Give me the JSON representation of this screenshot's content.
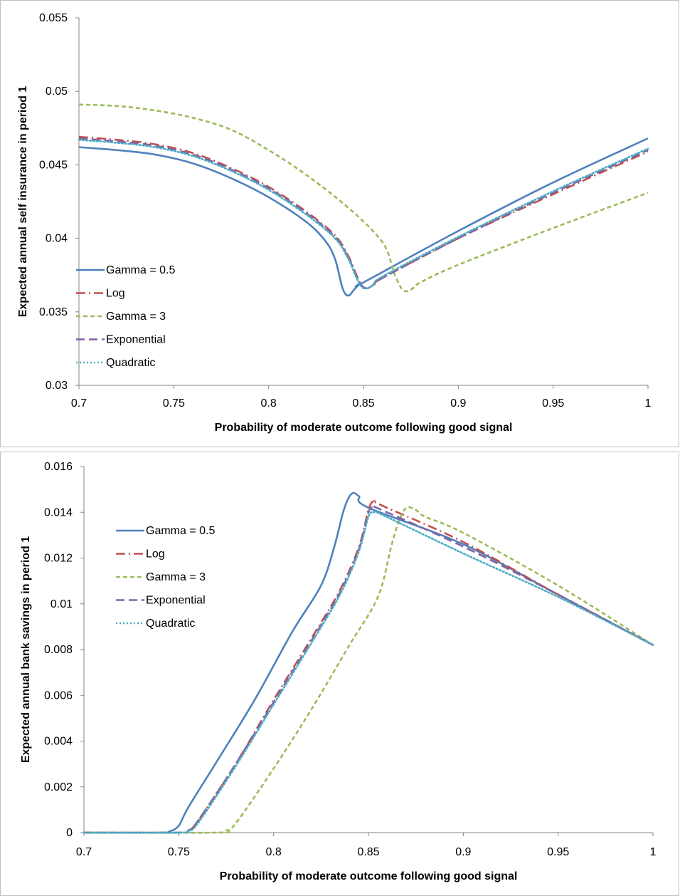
{
  "chart_data": [
    {
      "type": "line",
      "title": "",
      "xlabel": "Probability of moderate outcome following good signal",
      "ylabel": "Expected annual self insurance in period 1",
      "xlim": [
        0.7,
        1
      ],
      "ylim": [
        0.03,
        0.055
      ],
      "x_ticks": [
        "0.7",
        "0.75",
        "0.8",
        "0.85",
        "0.9",
        "0.95",
        "1"
      ],
      "y_ticks": [
        "0.03",
        "0.035",
        "0.04",
        "0.045",
        "0.05",
        "0.055"
      ],
      "grid": false,
      "legend_position": "left",
      "series": [
        {
          "name": "Gamma = 0.5",
          "color": "#4f81bd",
          "dash": "solid",
          "points": [
            [
              0.7,
              0.0462
            ],
            [
              0.72,
              0.046
            ],
            [
              0.74,
              0.0457
            ],
            [
              0.76,
              0.0451
            ],
            [
              0.78,
              0.0441
            ],
            [
              0.8,
              0.0428
            ],
            [
              0.82,
              0.0411
            ],
            [
              0.83,
              0.0398
            ],
            [
              0.835,
              0.0386
            ],
            [
              0.839,
              0.0366
            ],
            [
              0.842,
              0.0361
            ],
            [
              0.845,
              0.0365
            ],
            [
              0.848,
              0.0369
            ],
            [
              0.85,
              0.037
            ],
            [
              0.9,
              0.0405
            ],
            [
              0.95,
              0.0438
            ],
            [
              1.0,
              0.0468
            ]
          ]
        },
        {
          "name": "Log",
          "color": "#c0504d",
          "dash": "longdash",
          "points": [
            [
              0.7,
              0.0469
            ],
            [
              0.72,
              0.0467
            ],
            [
              0.74,
              0.0464
            ],
            [
              0.76,
              0.0458
            ],
            [
              0.78,
              0.0448
            ],
            [
              0.8,
              0.0435
            ],
            [
              0.82,
              0.0418
            ],
            [
              0.835,
              0.0402
            ],
            [
              0.842,
              0.0388
            ],
            [
              0.846,
              0.0376
            ],
            [
              0.849,
              0.0368
            ],
            [
              0.852,
              0.0366
            ],
            [
              0.856,
              0.0369
            ],
            [
              0.86,
              0.0373
            ],
            [
              0.9,
              0.04
            ],
            [
              0.95,
              0.043
            ],
            [
              1.0,
              0.0459
            ]
          ]
        },
        {
          "name": "Gamma = 3",
          "color": "#9bbb59",
          "dash": "shortdash",
          "points": [
            [
              0.7,
              0.0491
            ],
            [
              0.72,
              0.049
            ],
            [
              0.74,
              0.0487
            ],
            [
              0.76,
              0.0482
            ],
            [
              0.78,
              0.0474
            ],
            [
              0.8,
              0.046
            ],
            [
              0.82,
              0.0443
            ],
            [
              0.84,
              0.0423
            ],
            [
              0.855,
              0.0405
            ],
            [
              0.862,
              0.0393
            ],
            [
              0.866,
              0.0377
            ],
            [
              0.87,
              0.0366
            ],
            [
              0.873,
              0.0364
            ],
            [
              0.876,
              0.0366
            ],
            [
              0.88,
              0.037
            ],
            [
              0.9,
              0.0382
            ],
            [
              0.95,
              0.0407
            ],
            [
              1.0,
              0.0431
            ]
          ]
        },
        {
          "name": "Exponential",
          "color": "#8064a2",
          "dash": "mediumdash",
          "points": [
            [
              0.7,
              0.0468
            ],
            [
              0.72,
              0.0466
            ],
            [
              0.74,
              0.0463
            ],
            [
              0.76,
              0.0457
            ],
            [
              0.78,
              0.0447
            ],
            [
              0.8,
              0.0434
            ],
            [
              0.82,
              0.0417
            ],
            [
              0.835,
              0.0401
            ],
            [
              0.842,
              0.0387
            ],
            [
              0.846,
              0.0375
            ],
            [
              0.849,
              0.0368
            ],
            [
              0.852,
              0.0366
            ],
            [
              0.856,
              0.0369
            ],
            [
              0.86,
              0.0373
            ],
            [
              0.9,
              0.04
            ],
            [
              0.95,
              0.0431
            ],
            [
              1.0,
              0.046
            ]
          ]
        },
        {
          "name": "Quadratic",
          "color": "#4bacc6",
          "dash": "dotted",
          "points": [
            [
              0.7,
              0.0467
            ],
            [
              0.72,
              0.0465
            ],
            [
              0.74,
              0.0462
            ],
            [
              0.76,
              0.0456
            ],
            [
              0.78,
              0.0446
            ],
            [
              0.8,
              0.0433
            ],
            [
              0.82,
              0.0416
            ],
            [
              0.835,
              0.04
            ],
            [
              0.842,
              0.0386
            ],
            [
              0.846,
              0.0374
            ],
            [
              0.849,
              0.0367
            ],
            [
              0.852,
              0.0366
            ],
            [
              0.856,
              0.0369
            ],
            [
              0.86,
              0.0374
            ],
            [
              0.9,
              0.0401
            ],
            [
              0.95,
              0.0432
            ],
            [
              1.0,
              0.0461
            ]
          ]
        }
      ]
    },
    {
      "type": "line",
      "title": "",
      "xlabel": "Probability of moderate outcome following good signal",
      "ylabel": "Expected annual bank savings in period 1",
      "xlim": [
        0.7,
        1
      ],
      "ylim": [
        0,
        0.016
      ],
      "x_ticks": [
        "0.7",
        "0.75",
        "0.8",
        "0.85",
        "0.9",
        "0.95",
        "1"
      ],
      "y_ticks": [
        "0",
        "0.002",
        "0.004",
        "0.006",
        "0.008",
        "0.01",
        "0.012",
        "0.014",
        "0.016"
      ],
      "grid": false,
      "legend_position": "top-left",
      "series": [
        {
          "name": "Gamma = 0.5",
          "color": "#4f81bd",
          "dash": "solid",
          "points": [
            [
              0.7,
              0
            ],
            [
              0.74,
              0
            ],
            [
              0.745,
              5e-05
            ],
            [
              0.75,
              0.0003
            ],
            [
              0.755,
              0.0011
            ],
            [
              0.77,
              0.0031
            ],
            [
              0.79,
              0.0058
            ],
            [
              0.81,
              0.0088
            ],
            [
              0.825,
              0.0108
            ],
            [
              0.832,
              0.0125
            ],
            [
              0.837,
              0.0141
            ],
            [
              0.841,
              0.0148
            ],
            [
              0.845,
              0.0147
            ],
            [
              0.85,
              0.0142
            ],
            [
              0.9,
              0.0126
            ],
            [
              0.95,
              0.0104
            ],
            [
              1.0,
              0.0082
            ]
          ]
        },
        {
          "name": "Log",
          "color": "#c0504d",
          "dash": "longdash",
          "points": [
            [
              0.7,
              0
            ],
            [
              0.75,
              0
            ],
            [
              0.755,
              0.0001
            ],
            [
              0.76,
              0.0005
            ],
            [
              0.78,
              0.003
            ],
            [
              0.8,
              0.0058
            ],
            [
              0.82,
              0.0085
            ],
            [
              0.835,
              0.0106
            ],
            [
              0.845,
              0.0125
            ],
            [
              0.85,
              0.0141
            ],
            [
              0.853,
              0.0145
            ],
            [
              0.857,
              0.0143
            ],
            [
              0.9,
              0.0127
            ],
            [
              0.95,
              0.0104
            ],
            [
              1.0,
              0.0082
            ]
          ]
        },
        {
          "name": "Gamma = 3",
          "color": "#9bbb59",
          "dash": "shortdash",
          "points": [
            [
              0.7,
              0
            ],
            [
              0.77,
              0
            ],
            [
              0.775,
              0.0001
            ],
            [
              0.78,
              0.0004
            ],
            [
              0.8,
              0.0028
            ],
            [
              0.82,
              0.0054
            ],
            [
              0.84,
              0.0082
            ],
            [
              0.855,
              0.0103
            ],
            [
              0.862,
              0.0125
            ],
            [
              0.866,
              0.0136
            ],
            [
              0.87,
              0.0142
            ],
            [
              0.875,
              0.0141
            ],
            [
              0.88,
              0.0138
            ],
            [
              0.9,
              0.0131
            ],
            [
              0.95,
              0.0108
            ],
            [
              1.0,
              0.0082
            ]
          ]
        },
        {
          "name": "Exponential",
          "color": "#8064a2",
          "dash": "mediumdash",
          "points": [
            [
              0.7,
              0
            ],
            [
              0.75,
              0
            ],
            [
              0.755,
              0.0001
            ],
            [
              0.76,
              0.0005
            ],
            [
              0.78,
              0.003
            ],
            [
              0.8,
              0.0057
            ],
            [
              0.82,
              0.0084
            ],
            [
              0.835,
              0.0105
            ],
            [
              0.845,
              0.0124
            ],
            [
              0.85,
              0.014
            ],
            [
              0.853,
              0.0142
            ],
            [
              0.857,
              0.0141
            ],
            [
              0.9,
              0.0125
            ],
            [
              0.95,
              0.0104
            ],
            [
              1.0,
              0.0082
            ]
          ]
        },
        {
          "name": "Quadratic",
          "color": "#4bacc6",
          "dash": "dotted",
          "points": [
            [
              0.7,
              0
            ],
            [
              0.75,
              0
            ],
            [
              0.755,
              0.0001
            ],
            [
              0.76,
              0.0004
            ],
            [
              0.78,
              0.0029
            ],
            [
              0.8,
              0.0056
            ],
            [
              0.82,
              0.0083
            ],
            [
              0.835,
              0.0104
            ],
            [
              0.845,
              0.0123
            ],
            [
              0.85,
              0.0138
            ],
            [
              0.853,
              0.014
            ],
            [
              0.857,
              0.0139
            ],
            [
              0.9,
              0.0122
            ],
            [
              0.95,
              0.0103
            ],
            [
              1.0,
              0.0082
            ]
          ]
        }
      ]
    }
  ]
}
